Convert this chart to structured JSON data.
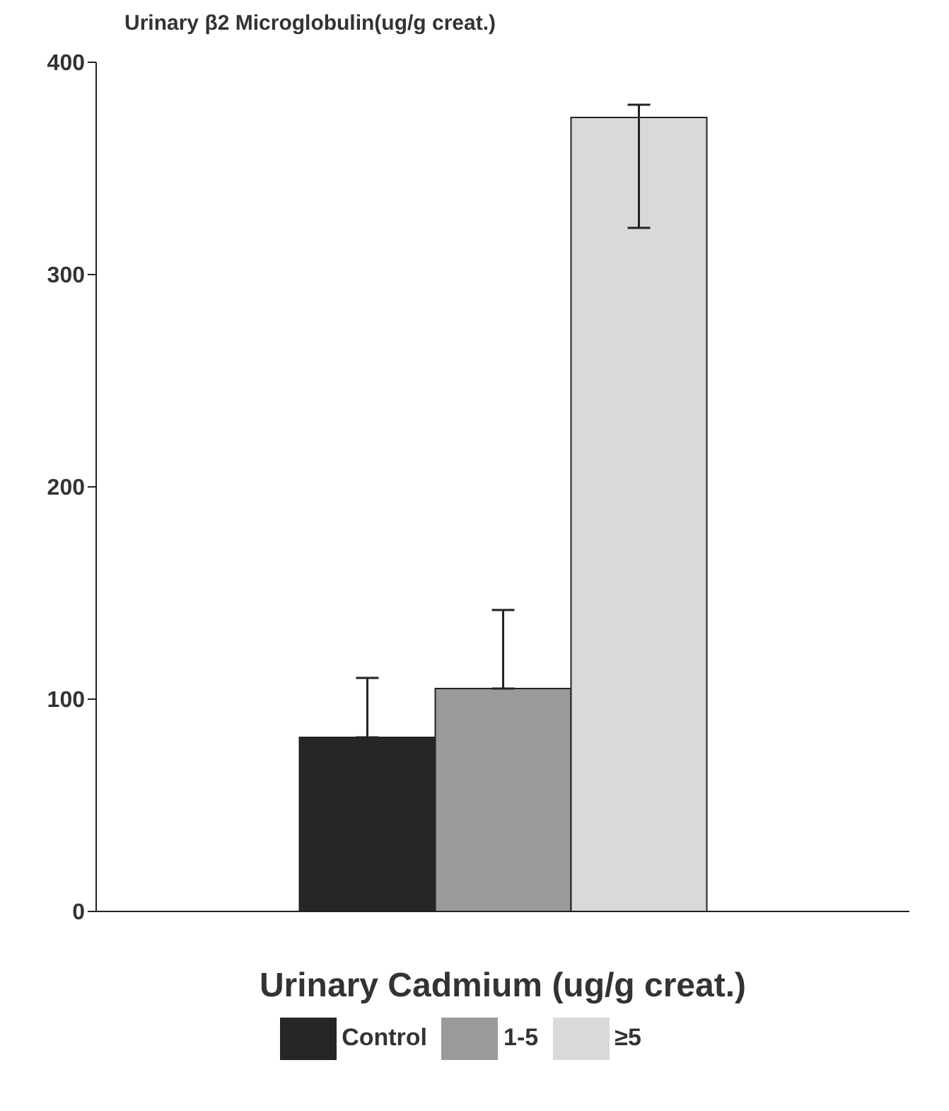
{
  "chart_data": {
    "type": "bar",
    "ylabel": "Urinary β2 Microglobulin(ug/g creat.)",
    "xlabel": "Urinary Cadmium (ug/g creat.)",
    "categories": [
      null
    ],
    "series": [
      {
        "name": "Control",
        "color": "#262626",
        "values": [
          82
        ],
        "errors": [
          [
            82,
            110
          ]
        ]
      },
      {
        "name": "1-5",
        "color": "#9a9a9a",
        "values": [
          105
        ],
        "errors": [
          [
            105,
            142
          ]
        ]
      },
      {
        "name": "≥5",
        "color": "#d9d9d9",
        "values": [
          374
        ],
        "errors": [
          [
            322,
            380
          ]
        ]
      }
    ],
    "ylim": [
      0,
      400
    ],
    "yticks": [
      0,
      100,
      200,
      300,
      400
    ],
    "grid": false,
    "legend": "bottom"
  }
}
